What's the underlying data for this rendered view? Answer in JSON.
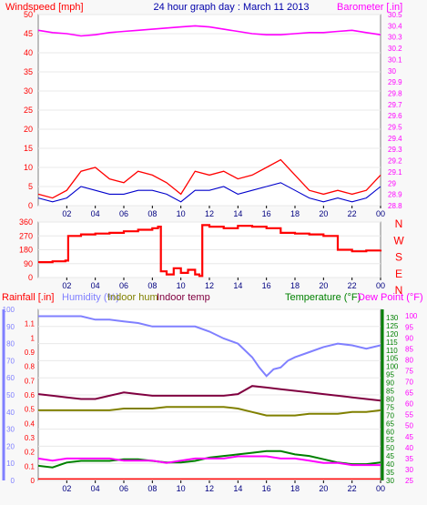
{
  "chart_data": [
    {
      "type": "line",
      "title": "24 hour graph day : March 11 2013",
      "ylabel_left": "Windspeed [mph]",
      "ylabel_right": "Barometer [.in]",
      "x_ticks": [
        "02",
        "04",
        "06",
        "08",
        "10",
        "12",
        "14",
        "16",
        "18",
        "20",
        "22",
        "00"
      ],
      "left_axis": {
        "ylim": [
          0,
          50
        ],
        "ticks": [
          "0",
          "5",
          "10",
          "15",
          "20",
          "25",
          "30",
          "35",
          "40",
          "45",
          "50"
        ]
      },
      "right_axis": {
        "ylim": [
          28.8,
          30.5
        ],
        "ticks": [
          "28.8",
          "28.9",
          "29",
          "29.1",
          "29.2",
          "29.3",
          "29.4",
          "29.5",
          "29.6",
          "29.7",
          "29.8",
          "29.9",
          "30",
          "30.1",
          "30.2",
          "30.3",
          "30.4",
          "30.5"
        ]
      },
      "colors": {
        "gust": "#ff0000",
        "wind": "#0000cc",
        "barometer": "#ff00ff",
        "title": "#0000aa",
        "left_label": "#ff0000",
        "right_label": "#ff00ff"
      },
      "series": [
        {
          "name": "Barometer",
          "axis": "right",
          "x": [
            0,
            1,
            2,
            3,
            4,
            5,
            6,
            7,
            8,
            9,
            10,
            11,
            12,
            13,
            14,
            15,
            16,
            17,
            18,
            19,
            20,
            21,
            22,
            23,
            24
          ],
          "values": [
            30.36,
            30.34,
            30.33,
            30.31,
            30.32,
            30.34,
            30.35,
            30.36,
            30.37,
            30.38,
            30.39,
            30.4,
            30.39,
            30.37,
            30.35,
            30.33,
            30.32,
            30.32,
            30.33,
            30.34,
            30.34,
            30.35,
            30.36,
            30.34,
            30.32
          ]
        },
        {
          "name": "Wind gust",
          "axis": "left",
          "x": [
            0,
            1,
            2,
            3,
            4,
            5,
            6,
            7,
            8,
            9,
            10,
            11,
            12,
            13,
            14,
            15,
            16,
            17,
            18,
            19,
            20,
            21,
            22,
            23,
            24
          ],
          "values": [
            3,
            2,
            4,
            9,
            10,
            7,
            6,
            9,
            8,
            6,
            3,
            9,
            8,
            9,
            7,
            8,
            10,
            12,
            8,
            4,
            3,
            4,
            3,
            4,
            8
          ]
        },
        {
          "name": "Wind speed",
          "axis": "left",
          "x": [
            0,
            1,
            2,
            3,
            4,
            5,
            6,
            7,
            8,
            9,
            10,
            11,
            12,
            13,
            14,
            15,
            16,
            17,
            18,
            19,
            20,
            21,
            22,
            23,
            24
          ],
          "values": [
            2,
            1,
            2,
            5,
            4,
            3,
            3,
            4,
            4,
            3,
            1,
            4,
            4,
            5,
            3,
            4,
            5,
            6,
            4,
            2,
            1,
            2,
            1,
            2,
            5
          ]
        }
      ]
    },
    {
      "type": "line",
      "ylabel_right_letters": [
        "N",
        "W",
        "S",
        "E",
        "N"
      ],
      "x_ticks": [
        "02",
        "04",
        "06",
        "08",
        "10",
        "12",
        "14",
        "16",
        "18",
        "20",
        "22",
        "00"
      ],
      "left_axis": {
        "ylim": [
          0,
          360
        ],
        "ticks": [
          "0",
          "90",
          "180",
          "270",
          "360"
        ]
      },
      "colors": {
        "direction": "#ff0000"
      },
      "series": [
        {
          "name": "Wind direction",
          "x": [
            0,
            1,
            1.9,
            2.1,
            3,
            4,
            5,
            6,
            7,
            8,
            8.4,
            8.6,
            9,
            9.5,
            10,
            10.5,
            11,
            11.3,
            11.5,
            12,
            13,
            14,
            15,
            16,
            17,
            18,
            19,
            20,
            21,
            22,
            23,
            24
          ],
          "values": [
            100,
            105,
            110,
            270,
            280,
            285,
            290,
            300,
            310,
            320,
            330,
            40,
            20,
            60,
            30,
            50,
            20,
            10,
            340,
            330,
            320,
            335,
            330,
            320,
            290,
            285,
            280,
            270,
            180,
            170,
            175,
            180
          ]
        }
      ]
    },
    {
      "type": "line",
      "legend_labels": [
        "Rainfall [.in]",
        "Humidity (%)",
        "Indoor hum",
        "Indoor temp",
        "Temperature (°F)",
        "Dew Point (°F)"
      ],
      "x_ticks": [
        "02",
        "04",
        "06",
        "08",
        "10",
        "12",
        "14",
        "16",
        "18",
        "20",
        "22",
        "00"
      ],
      "rain_axis": {
        "ylim": [
          0,
          1.2
        ],
        "ticks": [
          "0",
          "0.1",
          "0.2",
          "0.3",
          "0.4",
          "0.5",
          "0.6",
          "0.7",
          "0.8",
          "0.9",
          "1",
          "1.1"
        ]
      },
      "humidity_axis": {
        "ylim": [
          0,
          100
        ],
        "ticks": [
          "0",
          "10",
          "20",
          "30",
          "40",
          "50",
          "60",
          "70",
          "80",
          "90",
          "100"
        ]
      },
      "temp_axis": {
        "ylim": [
          30,
          135
        ],
        "ticks": [
          "30",
          "35",
          "40",
          "45",
          "50",
          "55",
          "60",
          "65",
          "70",
          "75",
          "80",
          "85",
          "90",
          "95",
          "100",
          "105",
          "110",
          "115",
          "120",
          "125",
          "130"
        ]
      },
      "dew_axis": {
        "ylim": [
          25,
          103
        ],
        "ticks": [
          "25",
          "30",
          "35",
          "40",
          "45",
          "50",
          "55",
          "60",
          "65",
          "70",
          "75",
          "80",
          "85",
          "90",
          "95",
          "100"
        ]
      },
      "colors": {
        "rain": "#ff0000",
        "humidity": "#8080ff",
        "indoor_hum": "#808000",
        "indoor_temp": "#800040",
        "temperature": "#008000",
        "dew_point": "#ff00ff"
      },
      "series": [
        {
          "name": "Humidity",
          "axis": "humidity",
          "x": [
            0,
            1,
            2,
            3,
            4,
            5,
            6,
            7,
            8,
            9,
            10,
            11,
            12,
            13,
            14,
            15,
            15.5,
            16,
            16.5,
            17,
            17.5,
            18,
            19,
            20,
            21,
            22,
            23,
            24
          ],
          "values": [
            96,
            96,
            96,
            96,
            94,
            94,
            93,
            92,
            90,
            90,
            90,
            90,
            87,
            83,
            80,
            72,
            66,
            61,
            65,
            66,
            70,
            72,
            75,
            78,
            80,
            79,
            77,
            79
          ]
        },
        {
          "name": "Indoor hum",
          "axis": "humidity",
          "x": [
            0,
            1,
            2,
            3,
            4,
            5,
            6,
            7,
            8,
            9,
            10,
            11,
            12,
            13,
            14,
            15,
            16,
            17,
            18,
            19,
            20,
            21,
            22,
            23,
            24
          ],
          "values": [
            41,
            41,
            41,
            41,
            41,
            41,
            42,
            42,
            42,
            43,
            43,
            43,
            43,
            43,
            42,
            40,
            38,
            38,
            38,
            39,
            39,
            39,
            40,
            40,
            41
          ]
        },
        {
          "name": "Indoor temp",
          "axis": "temperature",
          "x": [
            0,
            1,
            2,
            3,
            4,
            5,
            6,
            7,
            8,
            9,
            10,
            11,
            12,
            13,
            14,
            15,
            16,
            17,
            18,
            19,
            20,
            21,
            22,
            23,
            24
          ],
          "values": [
            83,
            82,
            81,
            80,
            80,
            82,
            84,
            83,
            82,
            82,
            82,
            82,
            82,
            82,
            83,
            88,
            87,
            86,
            85,
            84,
            83,
            82,
            81,
            80,
            79
          ]
        },
        {
          "name": "Temperature",
          "axis": "temperature",
          "x": [
            0,
            1,
            2,
            3,
            4,
            5,
            6,
            7,
            8,
            9,
            10,
            11,
            12,
            13,
            14,
            15,
            16,
            17,
            18,
            19,
            20,
            21,
            22,
            23,
            24
          ],
          "values": [
            39,
            38,
            41,
            42,
            42,
            42,
            43,
            43,
            42,
            41,
            41,
            42,
            44,
            45,
            46,
            47,
            48,
            48,
            46,
            45,
            43,
            41,
            40,
            40,
            41
          ]
        },
        {
          "name": "Dew Point",
          "axis": "dew",
          "x": [
            0,
            1,
            2,
            3,
            4,
            5,
            6,
            7,
            8,
            9,
            10,
            11,
            12,
            13,
            14,
            15,
            16,
            17,
            18,
            19,
            20,
            21,
            22,
            23,
            24
          ],
          "values": [
            35,
            34,
            35,
            35,
            35,
            35,
            34,
            34,
            34,
            33,
            34,
            35,
            35,
            35,
            36,
            36,
            36,
            35,
            35,
            34,
            33,
            33,
            32,
            32,
            32
          ]
        },
        {
          "name": "Rainfall",
          "axis": "rain",
          "x": [
            0,
            24
          ],
          "values": [
            0.01,
            0.01
          ]
        }
      ]
    }
  ]
}
